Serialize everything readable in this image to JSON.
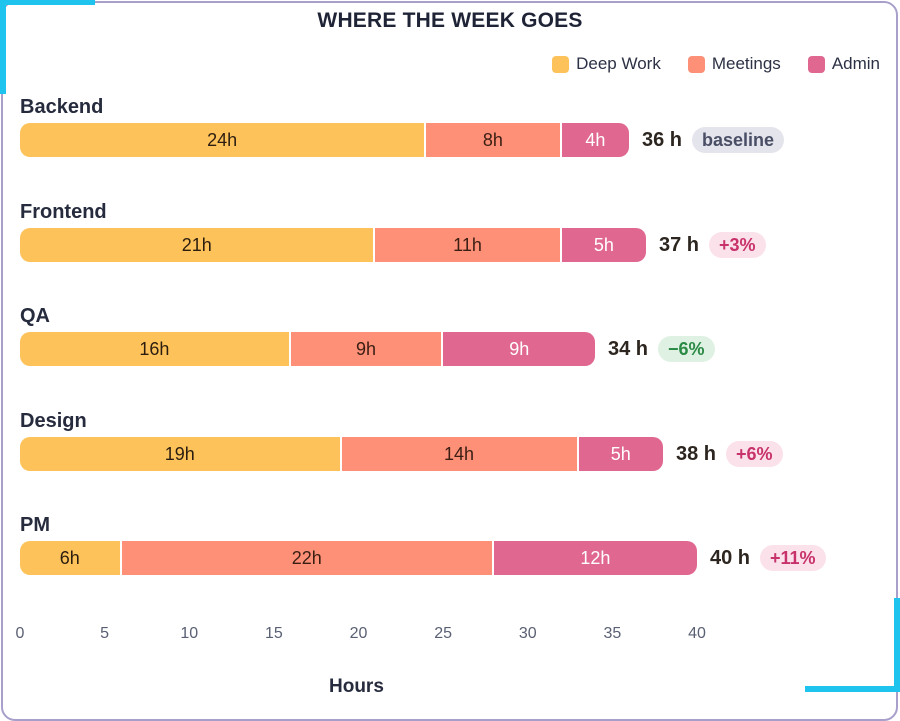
{
  "chart_data": {
    "type": "bar",
    "orientation": "horizontal",
    "stacked": true,
    "title": "WHERE THE WEEK GOES",
    "xlabel": "Hours",
    "xlim": [
      0,
      40
    ],
    "x_ticks": [
      "0",
      "5",
      "10",
      "15",
      "20",
      "25",
      "30",
      "35",
      "40"
    ],
    "grid": false,
    "legend_position": "top-right",
    "categories": [
      "Backend",
      "Frontend",
      "QA",
      "Design",
      "PM"
    ],
    "series": [
      {
        "name": "Deep Work",
        "color": "#fdc35a",
        "values": [
          24,
          21,
          16,
          19,
          6
        ]
      },
      {
        "name": "Meetings",
        "color": "#fd9076",
        "values": [
          8,
          11,
          9,
          14,
          22
        ]
      },
      {
        "name": "Admin",
        "color": "#e06890",
        "values": [
          4,
          5,
          9,
          5,
          12
        ]
      }
    ],
    "segment_labels": [
      [
        "24h",
        "8h",
        "4h"
      ],
      [
        "21h",
        "11h",
        "5h"
      ],
      [
        "16h",
        "9h",
        "9h"
      ],
      [
        "19h",
        "14h",
        "5h"
      ],
      [
        "6h",
        "22h",
        "12h"
      ]
    ],
    "totals": [
      36,
      37,
      34,
      38,
      40
    ],
    "total_labels": [
      "36 h",
      "37 h",
      "34 h",
      "38 h",
      "40 h"
    ],
    "badges": [
      {
        "text": "baseline",
        "kind": "neutral"
      },
      {
        "text": "+3%",
        "kind": "up"
      },
      {
        "text": "−6%",
        "kind": "down"
      },
      {
        "text": "+6%",
        "kind": "up"
      },
      {
        "text": "+11%",
        "kind": "up"
      }
    ]
  },
  "colors": {
    "segment_text_light": [
      "#2b1d10",
      "#3a1e14",
      "#ffffff"
    ],
    "badge_neutral_bg": "#e4e4ec",
    "badge_neutral_fg": "#4a4f66",
    "badge_up_bg": "#fbe1ea",
    "badge_up_fg": "#c8326a",
    "badge_down_bg": "#dff1e3",
    "badge_down_fg": "#2b8a45"
  }
}
